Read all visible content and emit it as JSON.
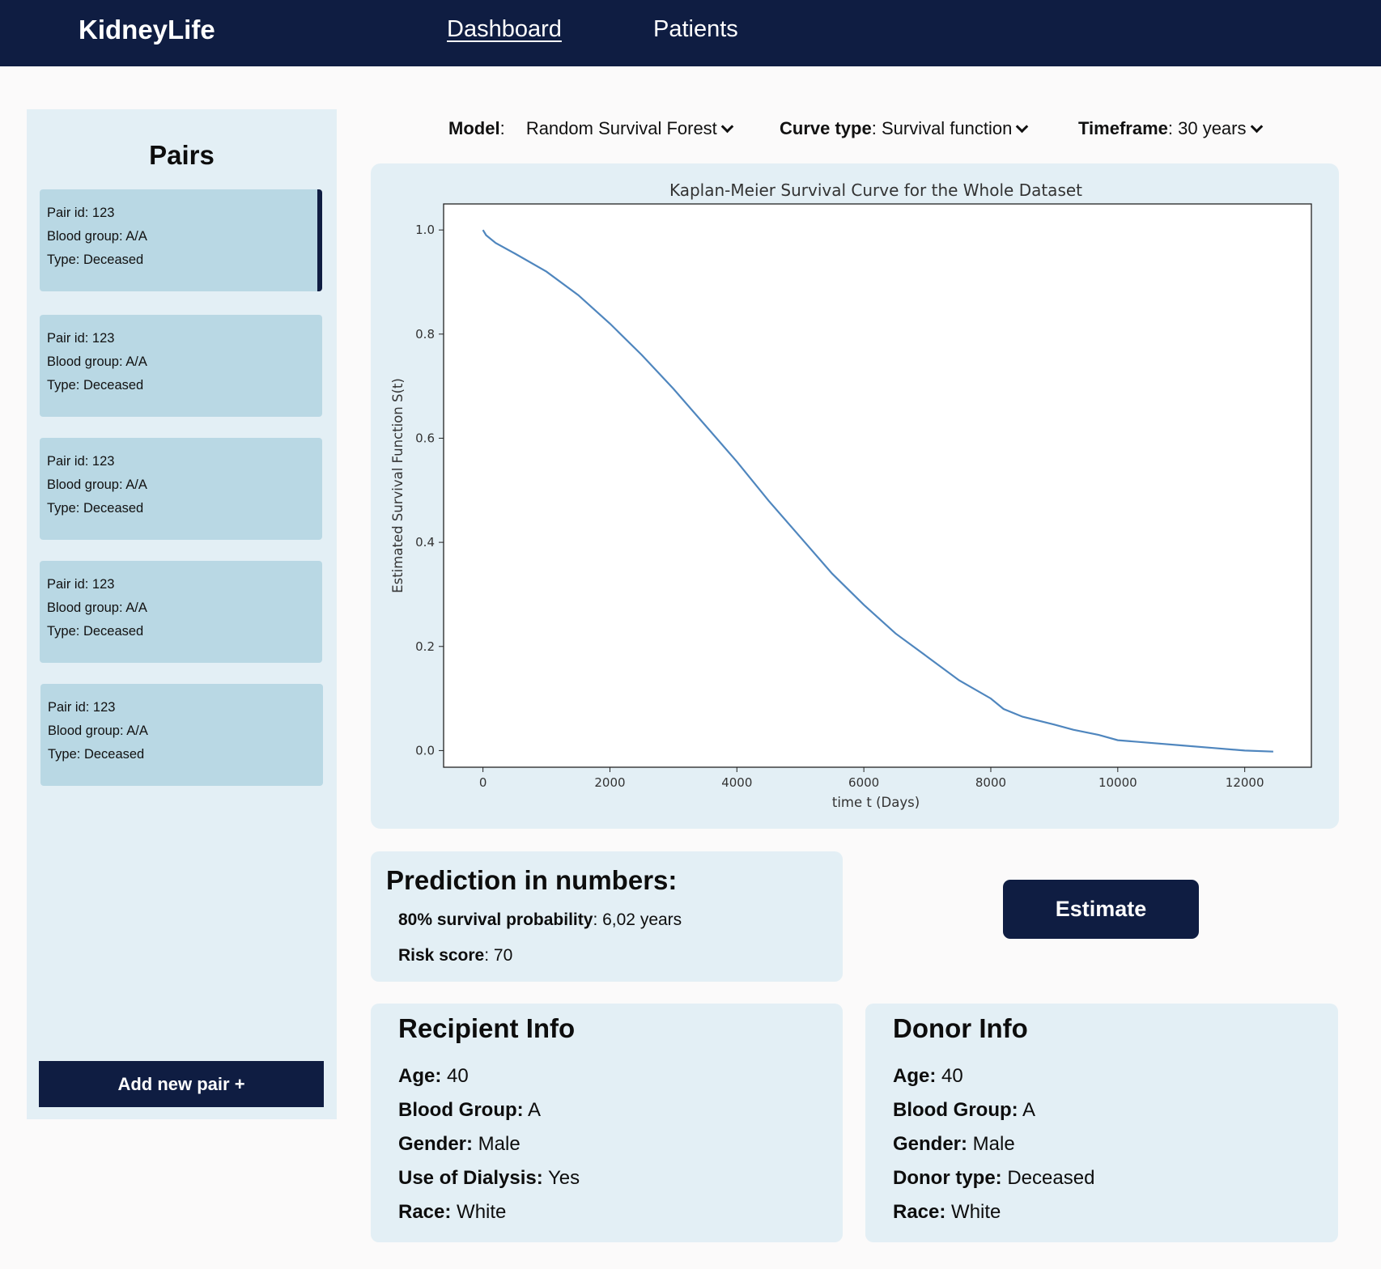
{
  "app": {
    "brand": "KidneyLife",
    "nav": [
      {
        "label": "Dashboard",
        "active": true
      },
      {
        "label": "Patients",
        "active": false
      }
    ]
  },
  "sidebar": {
    "title": "Pairs",
    "pairs": [
      {
        "id_label": "Pair id: 123",
        "blood_label": "Blood group: A/A",
        "type_label": "Type: Deceased",
        "selected": true
      },
      {
        "id_label": "Pair id: 123",
        "blood_label": "Blood group: A/A",
        "type_label": "Type: Deceased",
        "selected": false
      },
      {
        "id_label": "Pair id: 123",
        "blood_label": "Blood group: A/A",
        "type_label": "Type: Deceased",
        "selected": false
      },
      {
        "id_label": "Pair id: 123",
        "blood_label": "Blood group: A/A",
        "type_label": "Type: Deceased",
        "selected": false
      },
      {
        "id_label": "Pair id: 123",
        "blood_label": "Blood group: A/A",
        "type_label": "Type: Deceased",
        "selected": false
      }
    ],
    "add_button": "Add new pair +"
  },
  "controls": {
    "model": {
      "label": "Model",
      "value": "Random Survival Forest"
    },
    "curve_type": {
      "label": "Curve type",
      "value": "Survival function"
    },
    "timeframe": {
      "label": "Timeframe",
      "value": "30 years"
    }
  },
  "chart_data": {
    "type": "line",
    "title": "Kaplan-Meier Survival Curve for the Whole Dataset",
    "xlabel": "time t (Days)",
    "ylabel": "Estimated Survival Function S(t)",
    "xlim": [
      -620,
      13050
    ],
    "ylim": [
      -0.032,
      1.05
    ],
    "xticks": [
      0,
      2000,
      4000,
      6000,
      8000,
      10000,
      12000
    ],
    "yticks": [
      0.0,
      0.2,
      0.4,
      0.6,
      0.8,
      1.0
    ],
    "grid": false,
    "series": [
      {
        "color": "#4f86be",
        "x": [
          0,
          50,
          200,
          500,
          1000,
          1500,
          2000,
          2500,
          3000,
          3500,
          4000,
          4500,
          5000,
          5500,
          6000,
          6500,
          7000,
          7500,
          8000,
          8200,
          8500,
          9000,
          9300,
          9700,
          10000,
          10500,
          11000,
          11500,
          12000,
          12450
        ],
        "y": [
          1.0,
          0.99,
          0.975,
          0.955,
          0.92,
          0.875,
          0.82,
          0.76,
          0.695,
          0.625,
          0.555,
          0.48,
          0.41,
          0.34,
          0.28,
          0.225,
          0.18,
          0.135,
          0.1,
          0.08,
          0.065,
          0.05,
          0.04,
          0.03,
          0.02,
          0.015,
          0.01,
          0.005,
          0.0,
          -0.002
        ]
      }
    ]
  },
  "prediction": {
    "title": "Prediction in numbers:",
    "survival_label": "80% survival probability",
    "survival_value": ": 6,02 years",
    "risk_label": "Risk score",
    "risk_value": ": 70"
  },
  "estimate_button": "Estimate",
  "recipient": {
    "title": "Recipient Info",
    "fields": [
      {
        "label": "Age:",
        "value": " 40"
      },
      {
        "label": "Blood Group:",
        "value": " A"
      },
      {
        "label": "Gender:",
        "value": " Male"
      },
      {
        "label": "Use of Dialysis:",
        "value": " Yes"
      },
      {
        "label": "Race:",
        "value": " White"
      }
    ]
  },
  "donor": {
    "title": "Donor Info",
    "fields": [
      {
        "label": "Age:",
        "value": " 40"
      },
      {
        "label": "Blood Group:",
        "value": " A"
      },
      {
        "label": "Gender:",
        "value": " Male"
      },
      {
        "label": "Donor type:",
        "value": " Deceased"
      },
      {
        "label": "Race:",
        "value": " White"
      }
    ]
  },
  "colors": {
    "navy": "#0f1d42",
    "panel": "#e3eff5",
    "card": "#b9d8e4",
    "curve": "#4f86be"
  }
}
